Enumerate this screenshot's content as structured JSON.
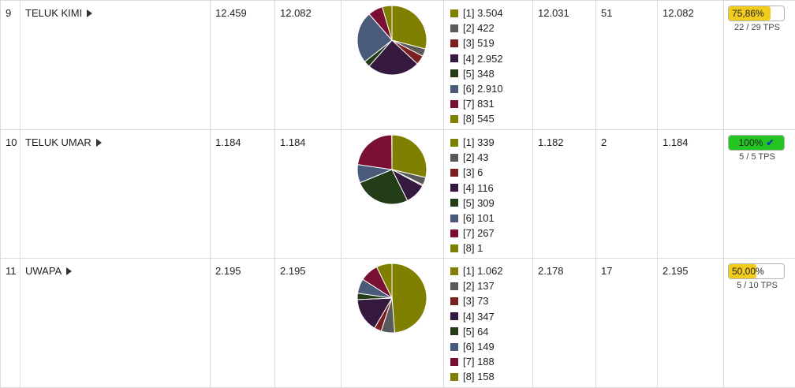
{
  "colors": {
    "c1": "#808000",
    "c2": "#5a5a5a",
    "c3": "#7a1f22",
    "c4": "#35193f",
    "c5": "#233d18",
    "c6": "#4a5a7b",
    "c7": "#7a0f34",
    "c8": "#808000",
    "progress_partial": "#f1cc1e",
    "progress_full": "#22c522"
  },
  "rows": [
    {
      "no": "9",
      "name": "TELUK KIMI",
      "col1": "12.459",
      "col2": "12.082",
      "legend": [
        "[1] 3.504",
        "[2] 422",
        "[3] 519",
        "[4] 2.952",
        "[5] 348",
        "[6] 2.910",
        "[7] 831",
        "[8] 545"
      ],
      "slices": [
        3504,
        422,
        519,
        2952,
        348,
        2910,
        831,
        545
      ],
      "col3": "12.031",
      "col4": "51",
      "col5": "12.082",
      "progress_label": "75,86%",
      "progress_fraction": 0.7586,
      "complete": false,
      "tps": "22 / 29 TPS"
    },
    {
      "no": "10",
      "name": "TELUK UMAR",
      "col1": "1.184",
      "col2": "1.184",
      "legend": [
        "[1] 339",
        "[2] 43",
        "[3] 6",
        "[4] 116",
        "[5] 309",
        "[6] 101",
        "[7] 267",
        "[8] 1"
      ],
      "slices": [
        339,
        43,
        6,
        116,
        309,
        101,
        267,
        1
      ],
      "col3": "1.182",
      "col4": "2",
      "col5": "1.184",
      "progress_label": "100%",
      "progress_fraction": 1.0,
      "complete": true,
      "tps": "5 / 5 TPS"
    },
    {
      "no": "11",
      "name": "UWAPA",
      "col1": "2.195",
      "col2": "2.195",
      "legend": [
        "[1] 1.062",
        "[2] 137",
        "[3] 73",
        "[4] 347",
        "[5] 64",
        "[6] 149",
        "[7] 188",
        "[8] 158"
      ],
      "slices": [
        1062,
        137,
        73,
        347,
        64,
        149,
        188,
        158
      ],
      "col3": "2.178",
      "col4": "17",
      "col5": "2.195",
      "progress_label": "50,00%",
      "progress_fraction": 0.5,
      "complete": false,
      "tps": "5 / 10 TPS"
    }
  ]
}
